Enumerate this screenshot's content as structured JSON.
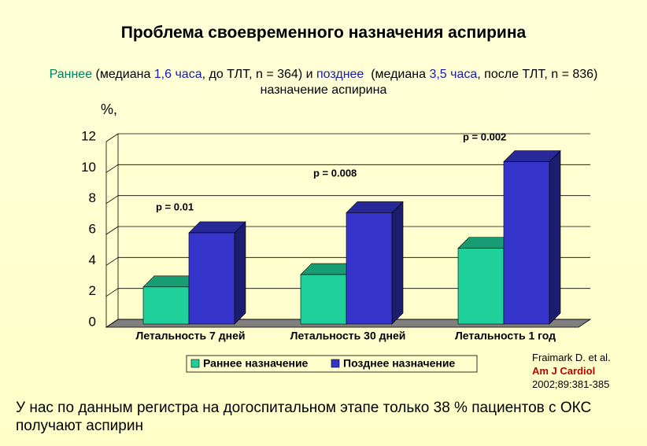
{
  "chart_data": {
    "type": "bar",
    "title": "Проблема своевременного назначения аспирина",
    "subtitle_parts": [
      {
        "text": "Раннее",
        "color": "#008060"
      },
      {
        "text": " (медиана ",
        "color": "#000000"
      },
      {
        "text": "1,6 часа",
        "color": "#1a1aa6"
      },
      {
        "text": ", до ТЛТ, n = 364) и ",
        "color": "#000000"
      },
      {
        "text": "позднее",
        "color": "#1a1aa6"
      },
      {
        "text": "  (медиана ",
        "color": "#000000"
      },
      {
        "text": "3,5 часа",
        "color": "#1a1aa6"
      },
      {
        "text": ", после ТЛТ, n = 836) назначение аспирина",
        "color": "#000000"
      }
    ],
    "y_axis_label": "%,",
    "categories": [
      "Летальность 7 дней",
      "Летальность 30 дней",
      "Летальность 1 год"
    ],
    "series": [
      {
        "name": "Раннее назначение",
        "color": "#1fd09a",
        "values": [
          2.4,
          3.2,
          4.9
        ]
      },
      {
        "name": "Позднее назначение",
        "color": "#3535cc",
        "values": [
          5.9,
          7.2,
          10.5
        ]
      }
    ],
    "ylim": [
      0,
      12
    ],
    "yticks": [
      0,
      2,
      4,
      6,
      8,
      10,
      12
    ],
    "grid": true,
    "annotations": [
      "p = 0.01",
      "p = 0.008",
      "p = 0.002"
    ],
    "citation": {
      "authors": "Fraimark D. et al.",
      "journal": "Am J Cardiol",
      "ref": "2002;89:381-385"
    },
    "footer": "У нас по данным регистра на догоспитальном этапе только 38 % пациентов с ОКС  получают аспирин"
  }
}
